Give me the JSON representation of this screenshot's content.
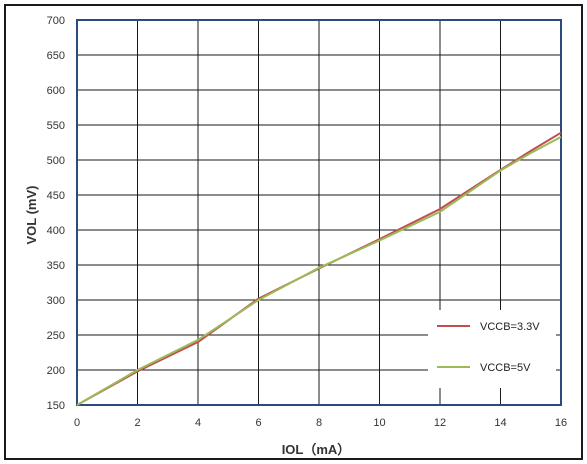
{
  "chart_data": {
    "type": "line",
    "title": "",
    "xlabel": "IOL（mA）",
    "ylabel": "VOL (mV)",
    "xlim": [
      0,
      16
    ],
    "ylim": [
      150,
      700
    ],
    "x_ticks": [
      0,
      2,
      4,
      6,
      8,
      10,
      12,
      14,
      16
    ],
    "y_ticks": [
      150,
      200,
      250,
      300,
      350,
      400,
      450,
      500,
      550,
      600,
      650,
      700
    ],
    "grid": true,
    "legend_position": "bottom-right",
    "series": [
      {
        "name": "VCCB=3.3V",
        "color": "#c0504d",
        "x": [
          0,
          2,
          4,
          6,
          8,
          10,
          12,
          14,
          15,
          16
        ],
        "y": [
          150,
          198,
          240,
          302,
          345,
          387,
          430,
          486,
          513,
          539
        ]
      },
      {
        "name": "VCCB=5V",
        "color": "#9bbb59",
        "x": [
          0,
          2,
          4,
          6,
          8,
          10,
          12,
          14,
          15,
          16
        ],
        "y": [
          150,
          200,
          243,
          300,
          346,
          385,
          426,
          485,
          510,
          533
        ]
      }
    ]
  }
}
